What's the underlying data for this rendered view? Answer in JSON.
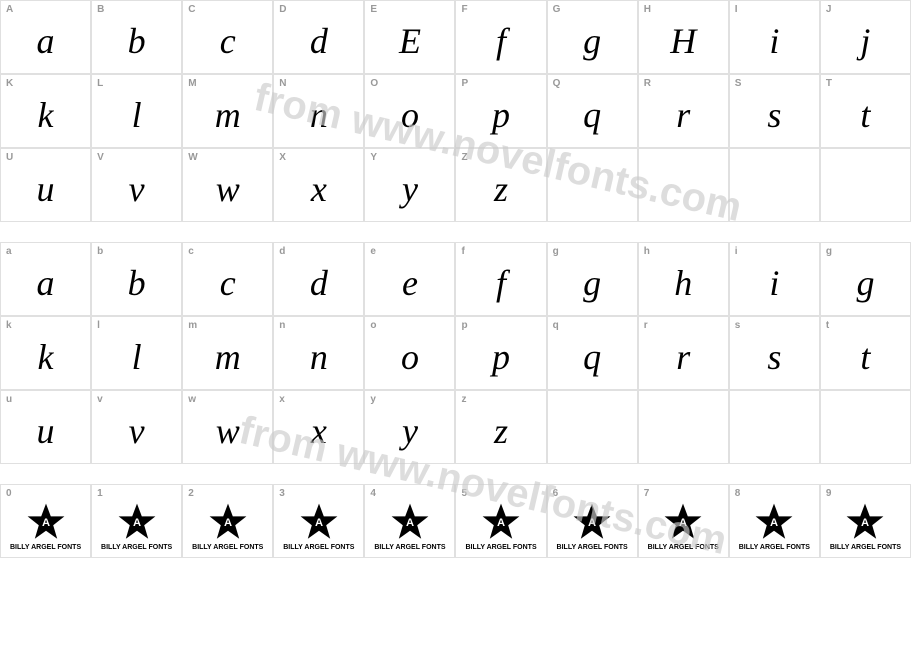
{
  "rows": [
    {
      "labels": [
        "A",
        "B",
        "C",
        "D",
        "E",
        "F",
        "G",
        "H",
        "I",
        "J"
      ],
      "glyphs": [
        "a",
        "b",
        "c",
        "d",
        "E",
        "f",
        "g",
        "H",
        "i",
        "j"
      ]
    },
    {
      "labels": [
        "K",
        "L",
        "M",
        "N",
        "O",
        "P",
        "Q",
        "R",
        "S",
        "T"
      ],
      "glyphs": [
        "k",
        "l",
        "m",
        "n",
        "o",
        "p",
        "q",
        "r",
        "s",
        "t"
      ]
    },
    {
      "labels": [
        "U",
        "V",
        "W",
        "X",
        "Y",
        "Z",
        "",
        "",
        "",
        ""
      ],
      "glyphs": [
        "u",
        "v",
        "w",
        "x",
        "y",
        "z",
        "",
        "",
        "",
        ""
      ]
    }
  ],
  "rows2": [
    {
      "labels": [
        "a",
        "b",
        "c",
        "d",
        "e",
        "f",
        "g",
        "h",
        "i",
        "g"
      ],
      "glyphs": [
        "a",
        "b",
        "c",
        "d",
        "e",
        "f",
        "g",
        "h",
        "i",
        "g"
      ]
    },
    {
      "labels": [
        "k",
        "l",
        "m",
        "n",
        "o",
        "p",
        "q",
        "r",
        "s",
        "t"
      ],
      "glyphs": [
        "k",
        "l",
        "m",
        "n",
        "o",
        "p",
        "q",
        "r",
        "s",
        "t"
      ]
    },
    {
      "labels": [
        "u",
        "v",
        "w",
        "x",
        "y",
        "z",
        "",
        "",
        "",
        ""
      ],
      "glyphs": [
        "u",
        "v",
        "w",
        "x",
        "y",
        "z",
        "",
        "",
        "",
        ""
      ]
    }
  ],
  "numRow": {
    "labels": [
      "0",
      "1",
      "2",
      "3",
      "4",
      "5",
      "6",
      "7",
      "8",
      "9"
    ],
    "starLetter": "A",
    "starText": "BILLY ARGEL FONTS"
  },
  "watermark": "from www.novelfonts.com",
  "colors": {
    "border": "#e0e0e0",
    "labelColor": "#999999",
    "glyphColor": "#000000",
    "watermarkColor": "#cccccc",
    "background": "#ffffff"
  }
}
